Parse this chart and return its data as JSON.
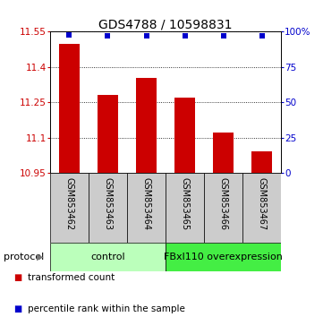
{
  "title": "GDS4788 / 10598831",
  "categories": [
    "GSM853462",
    "GSM853463",
    "GSM853464",
    "GSM853465",
    "GSM853466",
    "GSM853467"
  ],
  "bar_values": [
    11.5,
    11.28,
    11.355,
    11.27,
    11.12,
    11.04
  ],
  "percentile_values": [
    98,
    97,
    97,
    97,
    97,
    97
  ],
  "ylim_left": [
    10.95,
    11.55
  ],
  "ylim_right": [
    0,
    100
  ],
  "yticks_left": [
    10.95,
    11.1,
    11.25,
    11.4,
    11.55
  ],
  "yticks_right": [
    0,
    25,
    50,
    75,
    100
  ],
  "ytick_labels_left": [
    "10.95",
    "11.1",
    "11.25",
    "11.4",
    "11.55"
  ],
  "ytick_labels_right": [
    "0",
    "25",
    "50",
    "75",
    "100%"
  ],
  "bar_color": "#cc0000",
  "bar_width": 0.55,
  "percentile_color": "#0000cc",
  "label_box_color": "#cccccc",
  "protocol_groups": [
    {
      "label": "control",
      "spans": [
        0,
        3
      ],
      "color": "#bbffbb"
    },
    {
      "label": "FBxl110 overexpression",
      "spans": [
        3,
        6
      ],
      "color": "#44ee44"
    }
  ],
  "protocol_label": "protocol",
  "legend_items": [
    {
      "label": "transformed count",
      "color": "#cc0000"
    },
    {
      "label": "percentile rank within the sample",
      "color": "#0000cc"
    }
  ],
  "title_fontsize": 10,
  "tick_fontsize": 7.5,
  "cat_fontsize": 7,
  "proto_fontsize": 8,
  "legend_fontsize": 7.5
}
